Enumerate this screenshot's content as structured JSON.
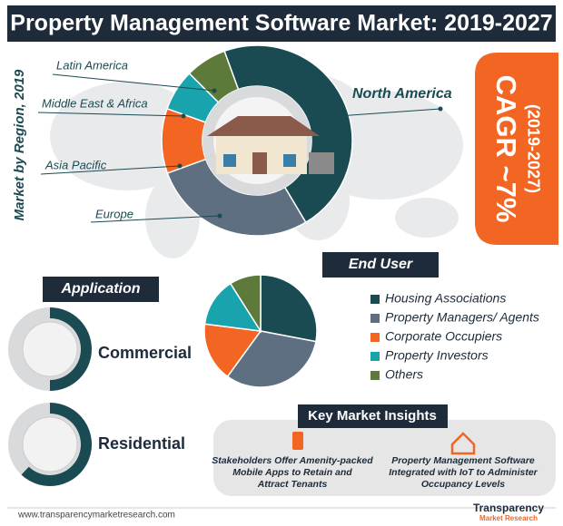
{
  "title": "Property Management Software Market: 2019-2027",
  "chart_data": [
    {
      "type": "donut",
      "title": "Market by Region, 2019",
      "categories": [
        "North America",
        "Europe",
        "Asia Pacific",
        "Middle East & Africa",
        "Latin America"
      ],
      "values": [
        47,
        28,
        11,
        7,
        7
      ],
      "colors": [
        "#1a4a52",
        "#5f6f82",
        "#f26522",
        "#19a3ad",
        "#5d7a3b"
      ]
    },
    {
      "type": "pie",
      "title": "End User",
      "categories": [
        "Housing Associations",
        "Property Managers/ Agents",
        "Corporate Occupiers",
        "Property Investors",
        "Others"
      ],
      "values": [
        28,
        32,
        17,
        14,
        9
      ],
      "colors": [
        "#1a4a52",
        "#5f6f82",
        "#f26522",
        "#19a3ad",
        "#5d7a3b"
      ]
    },
    {
      "type": "gauge",
      "title": "Application",
      "categories": [
        "Commercial",
        "Residential"
      ],
      "values": [
        50,
        62
      ],
      "color": "#1a4a52"
    }
  ],
  "cagr": {
    "label": "CAGR ~7%",
    "period": "(2019-2027)"
  },
  "insights": {
    "title": "Key Market Insights",
    "items": [
      [
        "Stakeholders Offer Amenity-packed",
        "Mobile Apps to Retain and",
        "Attract Tenants"
      ],
      [
        "Property Management Software",
        "Integrated with IoT to Administer",
        "Occupancy Levels"
      ]
    ]
  },
  "footer": {
    "url": "www.transparencymarketresearch.com",
    "brand": "Transparency",
    "brand2": "Market Research"
  }
}
